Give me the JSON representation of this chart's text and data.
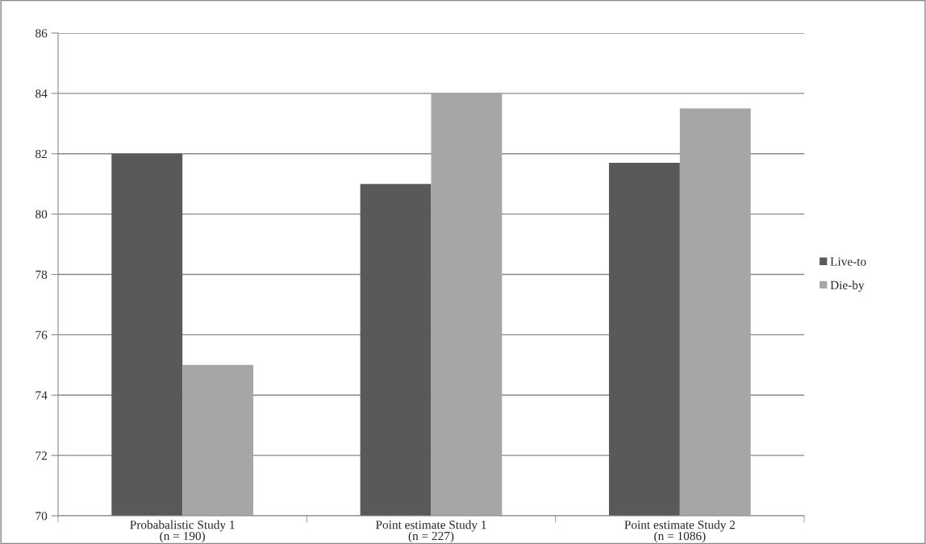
{
  "chart_data": {
    "type": "bar",
    "categories": [
      "Probabalistic Study 1\n(n = 190)",
      "Point estimate Study 1\n(n = 227)",
      "Point estimate Study 2\n(n = 1086)"
    ],
    "series": [
      {
        "name": "Live-to",
        "color": "#595959",
        "values": [
          82,
          81,
          81.7
        ]
      },
      {
        "name": "Die-by",
        "color": "#a6a6a6",
        "values": [
          75,
          84,
          83.5
        ]
      }
    ],
    "ylim": [
      70,
      86
    ],
    "yticks": [
      70,
      72,
      74,
      76,
      78,
      80,
      82,
      84,
      86
    ],
    "grid": "y",
    "legend": "right"
  }
}
